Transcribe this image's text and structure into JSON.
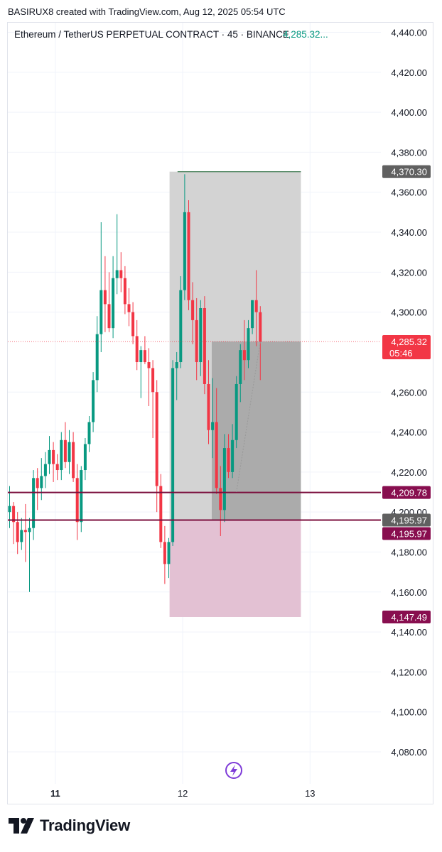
{
  "header": {
    "credit": "BASIRUX8 created with TradingView.com, Aug 12, 2025 05:54 UTC"
  },
  "legend": {
    "symbol": "Ethereum / TetherUS PERPETUAL CONTRACT · 45 · BINANCE",
    "price": "4,285.32..."
  },
  "footer": {
    "brand": "TradingView"
  },
  "colors": {
    "up": "#089981",
    "down": "#f23645",
    "grid": "#f0f3fa",
    "axis_text": "#131722",
    "position_box": "#d3d3d3",
    "position_box_dark": "#ababab",
    "stop_zone": "#e3c1d3",
    "level_line": "#7b0f3d",
    "label_gray": "#606060",
    "label_maroon": "#880e4f",
    "current_price": "#f23645"
  },
  "chart_data": {
    "type": "candlestick",
    "symbol": "Ethereum / TetherUS PERPETUAL CONTRACT",
    "interval": "45",
    "exchange": "BINANCE",
    "y_axis": {
      "ylim": [
        4065,
        4450
      ],
      "ticks": [
        "4,440.00",
        "4,420.00",
        "4,400.00",
        "4,380.00",
        "4,360.00",
        "4,340.00",
        "4,320.00",
        "4,300.00",
        "4,260.00",
        "4,240.00",
        "4,220.00",
        "4,200.00",
        "4,180.00",
        "4,160.00",
        "4,140.00",
        "4,120.00",
        "4,100.00",
        "4,080.00"
      ],
      "tick_values": [
        4440,
        4420,
        4400,
        4380,
        4360,
        4340,
        4320,
        4300,
        4260,
        4240,
        4220,
        4200,
        4180,
        4160,
        4140,
        4120,
        4100,
        4080
      ]
    },
    "x_axis": {
      "ticks": [
        {
          "label": "11",
          "bar": 11.5,
          "bold": true
        },
        {
          "label": "12",
          "bar": 43.5,
          "bold": false
        },
        {
          "label": "13",
          "bar": 75.5,
          "bold": false
        }
      ],
      "bar_range": [
        -0.5,
        106
      ]
    },
    "candles": [
      {
        "o": 4200,
        "h": 4213,
        "l": 4192,
        "c": 4203
      },
      {
        "o": 4203,
        "h": 4205,
        "l": 4184,
        "c": 4195
      },
      {
        "o": 4195,
        "h": 4200,
        "l": 4179,
        "c": 4185
      },
      {
        "o": 4185,
        "h": 4197,
        "l": 4181,
        "c": 4191
      },
      {
        "o": 4191,
        "h": 4204,
        "l": 4175,
        "c": 4190
      },
      {
        "o": 4190,
        "h": 4197,
        "l": 4160,
        "c": 4192
      },
      {
        "o": 4192,
        "h": 4221,
        "l": 4186,
        "c": 4217
      },
      {
        "o": 4217,
        "h": 4222,
        "l": 4201,
        "c": 4212
      },
      {
        "o": 4212,
        "h": 4227,
        "l": 4206,
        "c": 4218
      },
      {
        "o": 4218,
        "h": 4230,
        "l": 4212,
        "c": 4224
      },
      {
        "o": 4224,
        "h": 4238,
        "l": 4219,
        "c": 4231
      },
      {
        "o": 4231,
        "h": 4235,
        "l": 4215,
        "c": 4224
      },
      {
        "o": 4224,
        "h": 4229,
        "l": 4216,
        "c": 4221
      },
      {
        "o": 4221,
        "h": 4240,
        "l": 4216,
        "c": 4236
      },
      {
        "o": 4236,
        "h": 4245,
        "l": 4222,
        "c": 4225
      },
      {
        "o": 4225,
        "h": 4241,
        "l": 4219,
        "c": 4235
      },
      {
        "o": 4235,
        "h": 4240,
        "l": 4215,
        "c": 4217
      },
      {
        "o": 4217,
        "h": 4224,
        "l": 4186,
        "c": 4195
      },
      {
        "o": 4195,
        "h": 4223,
        "l": 4190,
        "c": 4221
      },
      {
        "o": 4221,
        "h": 4237,
        "l": 4216,
        "c": 4234
      },
      {
        "o": 4234,
        "h": 4248,
        "l": 4230,
        "c": 4245
      },
      {
        "o": 4245,
        "h": 4270,
        "l": 4240,
        "c": 4266
      },
      {
        "o": 4266,
        "h": 4298,
        "l": 4260,
        "c": 4289
      },
      {
        "o": 4289,
        "h": 4345,
        "l": 4280,
        "c": 4311
      },
      {
        "o": 4311,
        "h": 4328,
        "l": 4290,
        "c": 4304
      },
      {
        "o": 4304,
        "h": 4320,
        "l": 4290,
        "c": 4292
      },
      {
        "o": 4292,
        "h": 4328,
        "l": 4287,
        "c": 4317
      },
      {
        "o": 4317,
        "h": 4349,
        "l": 4309,
        "c": 4321
      },
      {
        "o": 4321,
        "h": 4330,
        "l": 4310,
        "c": 4317
      },
      {
        "o": 4317,
        "h": 4323,
        "l": 4299,
        "c": 4304
      },
      {
        "o": 4304,
        "h": 4312,
        "l": 4293,
        "c": 4300
      },
      {
        "o": 4300,
        "h": 4305,
        "l": 4284,
        "c": 4288
      },
      {
        "o": 4288,
        "h": 4296,
        "l": 4271,
        "c": 4275
      },
      {
        "o": 4275,
        "h": 4283,
        "l": 4257,
        "c": 4281
      },
      {
        "o": 4281,
        "h": 4288,
        "l": 4274,
        "c": 4275
      },
      {
        "o": 4275,
        "h": 4282,
        "l": 4253,
        "c": 4272
      },
      {
        "o": 4272,
        "h": 4276,
        "l": 4237,
        "c": 4260
      },
      {
        "o": 4260,
        "h": 4266,
        "l": 4200,
        "c": 4213
      },
      {
        "o": 4213,
        "h": 4219,
        "l": 4182,
        "c": 4185
      },
      {
        "o": 4185,
        "h": 4193,
        "l": 4164,
        "c": 4174
      },
      {
        "o": 4174,
        "h": 4187,
        "l": 4167,
        "c": 4185
      },
      {
        "o": 4185,
        "h": 4276,
        "l": 4183,
        "c": 4272
      },
      {
        "o": 4272,
        "h": 4280,
        "l": 4256,
        "c": 4275
      },
      {
        "o": 4275,
        "h": 4318,
        "l": 4272,
        "c": 4311
      },
      {
        "o": 4311,
        "h": 4369,
        "l": 4306,
        "c": 4350
      },
      {
        "o": 4350,
        "h": 4356,
        "l": 4301,
        "c": 4306
      },
      {
        "o": 4306,
        "h": 4315,
        "l": 4284,
        "c": 4296
      },
      {
        "o": 4296,
        "h": 4307,
        "l": 4266,
        "c": 4275
      },
      {
        "o": 4275,
        "h": 4306,
        "l": 4268,
        "c": 4302
      },
      {
        "o": 4302,
        "h": 4308,
        "l": 4259,
        "c": 4264
      },
      {
        "o": 4264,
        "h": 4276,
        "l": 4234,
        "c": 4241
      },
      {
        "o": 4241,
        "h": 4267,
        "l": 4227,
        "c": 4245
      },
      {
        "o": 4245,
        "h": 4262,
        "l": 4209,
        "c": 4212
      },
      {
        "o": 4212,
        "h": 4223,
        "l": 4188,
        "c": 4201
      },
      {
        "o": 4201,
        "h": 4239,
        "l": 4195,
        "c": 4232
      },
      {
        "o": 4232,
        "h": 4239,
        "l": 4217,
        "c": 4220
      },
      {
        "o": 4220,
        "h": 4244,
        "l": 4217,
        "c": 4236
      },
      {
        "o": 4236,
        "h": 4268,
        "l": 4232,
        "c": 4264
      },
      {
        "o": 4264,
        "h": 4284,
        "l": 4255,
        "c": 4281
      },
      {
        "o": 4281,
        "h": 4296,
        "l": 4266,
        "c": 4276
      },
      {
        "o": 4276,
        "h": 4296,
        "l": 4272,
        "c": 4292
      },
      {
        "o": 4292,
        "h": 4306,
        "l": 4289,
        "c": 4306
      },
      {
        "o": 4306,
        "h": 4321,
        "l": 4283,
        "c": 4300
      },
      {
        "o": 4300,
        "h": 4303,
        "l": 4266,
        "c": 4285.32
      }
    ],
    "position": {
      "side": "long",
      "entry": 4285.32,
      "target": 4370.3,
      "stop": 4147.49,
      "start_bar": 40.2,
      "end_bar": 73.2,
      "fill_from_bar": 50.8,
      "fill_low": 4195.97
    },
    "horizontal_levels": [
      {
        "value": 4209.78,
        "label": "4,209.78"
      },
      {
        "value": 4195.97,
        "label": "4,195.97"
      }
    ],
    "price_labels": [
      {
        "value": 4370.3,
        "label": "4,370.30",
        "style": "gray"
      },
      {
        "value": 4285.32,
        "label": "4,285.32",
        "sublabel": "05:46",
        "style": "current"
      },
      {
        "value": 4209.78,
        "label": "4,209.78",
        "style": "maroon"
      },
      {
        "value": 4195.97,
        "label": "4,195.97",
        "style": "gray"
      },
      {
        "value": 4195.97,
        "label": "4,195.97",
        "style": "maroon",
        "offset": 1
      },
      {
        "value": 4147.49,
        "label": "4,147.49",
        "style": "maroon"
      }
    ],
    "current_price": 4285.32,
    "countdown": "05:46"
  }
}
